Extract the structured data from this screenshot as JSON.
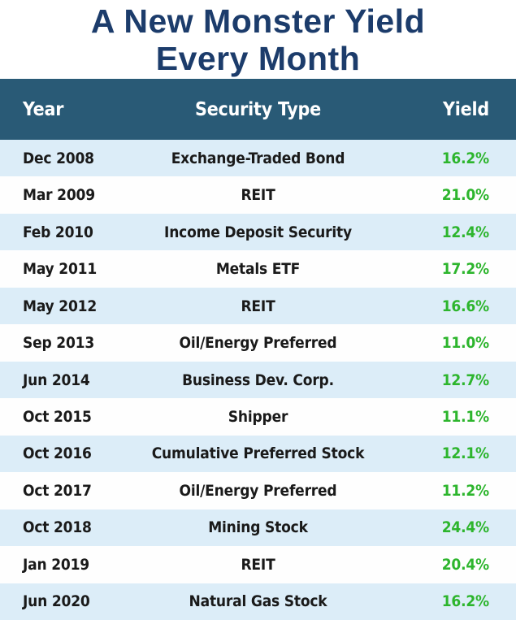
{
  "title": {
    "lines": [
      "A New Monster Yield",
      "Every Month"
    ]
  },
  "colors": {
    "title_color": "#1C3C6B",
    "header_bg": "#295A76",
    "header_text": "#FFFFFF",
    "row_bg": "#FEFEFE",
    "row_alt_bg": "#DCEDF8",
    "text_color": "#1A1A1A",
    "yield_color": "#2DB52D"
  },
  "table": {
    "columns": [
      "Year",
      "Security Type",
      "Yield"
    ],
    "rows": [
      {
        "year": "Dec 2008",
        "security_type": "Exchange-Traded Bond",
        "yield": "16.2%"
      },
      {
        "year": "Mar 2009",
        "security_type": "REIT",
        "yield": "21.0%"
      },
      {
        "year": "Feb 2010",
        "security_type": "Income Deposit Security",
        "yield": "12.4%"
      },
      {
        "year": "May 2011",
        "security_type": "Metals ETF",
        "yield": "17.2%"
      },
      {
        "year": "May 2012",
        "security_type": "REIT",
        "yield": "16.6%"
      },
      {
        "year": "Sep 2013",
        "security_type": "Oil/Energy Preferred",
        "yield": "11.0%"
      },
      {
        "year": "Jun 2014",
        "security_type": "Business Dev. Corp.",
        "yield": "12.7%"
      },
      {
        "year": "Oct 2015",
        "security_type": "Shipper",
        "yield": "11.1%"
      },
      {
        "year": "Oct 2016",
        "security_type": "Cumulative Preferred Stock",
        "yield": "12.1%"
      },
      {
        "year": "Oct 2017",
        "security_type": "Oil/Energy Preferred",
        "yield": "11.2%"
      },
      {
        "year": "Oct 2018",
        "security_type": "Mining Stock",
        "yield": "24.4%"
      },
      {
        "year": "Jan 2019",
        "security_type": "REIT",
        "yield": "20.4%"
      },
      {
        "year": "Jun 2020",
        "security_type": "Natural Gas Stock",
        "yield": "16.2%"
      }
    ]
  },
  "chart_data": {
    "type": "table",
    "title": "A New Monster Yield Every Month",
    "columns": [
      "Year",
      "Security Type",
      "Yield"
    ],
    "rows": [
      [
        "Dec 2008",
        "Exchange-Traded Bond",
        "16.2%"
      ],
      [
        "Mar 2009",
        "REIT",
        "21.0%"
      ],
      [
        "Feb 2010",
        "Income Deposit Security",
        "12.4%"
      ],
      [
        "May 2011",
        "Metals ETF",
        "17.2%"
      ],
      [
        "May 2012",
        "REIT",
        "16.6%"
      ],
      [
        "Sep 2013",
        "Oil/Energy Preferred",
        "11.0%"
      ],
      [
        "Jun 2014",
        "Business Dev. Corp.",
        "12.7%"
      ],
      [
        "Oct 2015",
        "Shipper",
        "11.1%"
      ],
      [
        "Oct 2016",
        "Cumulative Preferred Stock",
        "12.1%"
      ],
      [
        "Oct 2017",
        "Oil/Energy Preferred",
        "11.2%"
      ],
      [
        "Oct 2018",
        "Mining Stock",
        "24.4%"
      ],
      [
        "Jan 2019",
        "REIT",
        "20.4%"
      ],
      [
        "Jun 2020",
        "Natural Gas Stock",
        "16.2%"
      ]
    ],
    "yield_values": [
      16.2,
      21.0,
      12.4,
      17.2,
      16.6,
      11.0,
      12.7,
      11.1,
      12.1,
      11.2,
      24.4,
      20.4,
      16.2
    ],
    "layout": {
      "row_striping": true,
      "stripe_start": "alt",
      "value_alignment": {
        "Year": "left",
        "Security Type": "center",
        "Yield": "right"
      }
    }
  }
}
